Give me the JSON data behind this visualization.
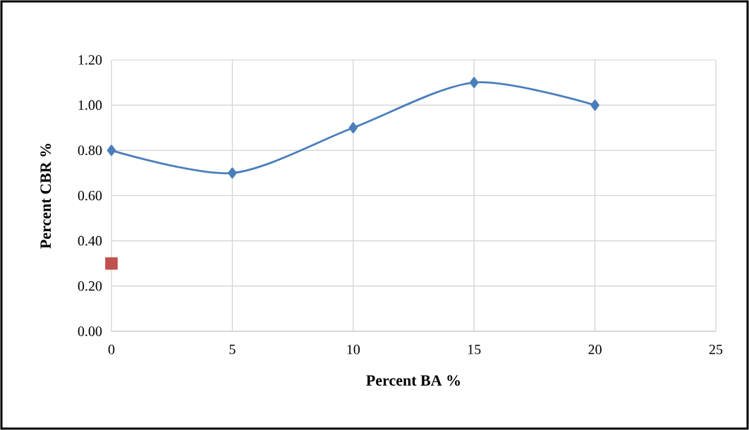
{
  "chart_data": {
    "type": "line",
    "xlabel": "Percent BA %",
    "ylabel": "Percent CBR %",
    "xlim": [
      0,
      25
    ],
    "ylim": [
      0,
      1.2
    ],
    "xticks": [
      0,
      5,
      10,
      15,
      20,
      25
    ],
    "yticks": [
      {
        "value": 0,
        "label": "0.00"
      },
      {
        "value": 0.2,
        "label": "0.20"
      },
      {
        "value": 0.4,
        "label": "0.40"
      },
      {
        "value": 0.6,
        "label": "0.60"
      },
      {
        "value": 0.8,
        "label": "0.80"
      },
      {
        "value": 1.0,
        "label": "1.00"
      },
      {
        "value": 1.2,
        "label": "1.20"
      }
    ],
    "grid": true,
    "series": [
      {
        "color": "#4a7ebb",
        "marker": "diamond",
        "x": [
          0,
          5,
          10,
          15,
          20
        ],
        "values": [
          0.8,
          0.7,
          0.9,
          1.1,
          1.0
        ]
      },
      {
        "type": "scatter",
        "color": "#c0504d",
        "marker": "square",
        "x": [
          0
        ],
        "values": [
          0.3
        ]
      }
    ]
  }
}
